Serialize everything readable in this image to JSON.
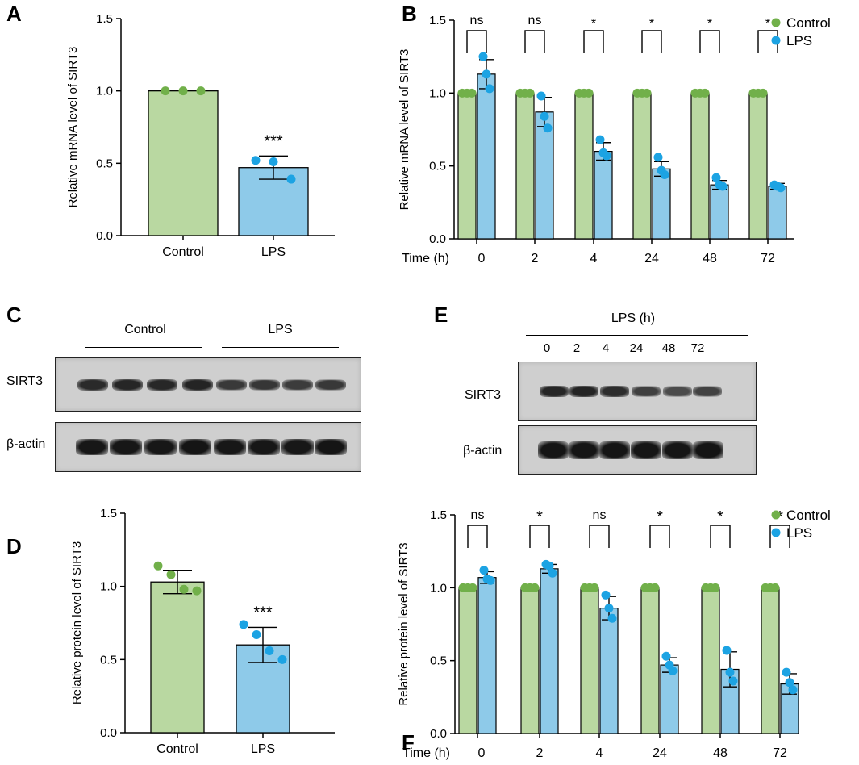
{
  "panels": [
    {
      "letter": "A"
    },
    {
      "letter": "B"
    },
    {
      "letter": "C"
    },
    {
      "letter": "D"
    },
    {
      "letter": "E"
    },
    {
      "letter": "F"
    }
  ],
  "chart_data": [
    {
      "id": "A",
      "type": "bar",
      "categories": [
        "Control",
        "LPS"
      ],
      "values": [
        1.0,
        0.47
      ],
      "errors": [
        0,
        0.08
      ],
      "points": [
        [
          1.0,
          1.0,
          1.0
        ],
        [
          0.52,
          0.51,
          0.39
        ]
      ],
      "significance": [
        "",
        "***"
      ],
      "ylabel": "Relative mRNA level of SIRT3",
      "ylim": [
        0,
        1.5
      ],
      "yticks": [
        "0.0",
        "0.5",
        "1.0",
        "1.5"
      ],
      "colors": {
        "control": "#b9d8a1",
        "lps": "#8ecae9"
      }
    },
    {
      "id": "B",
      "type": "bar",
      "xlabel": "Time (h)",
      "categories": [
        "0",
        "2",
        "4",
        "24",
        "48",
        "72"
      ],
      "series": [
        {
          "name": "Control",
          "values": [
            1,
            1,
            1,
            1,
            1,
            1
          ],
          "errors": [
            0,
            0,
            0,
            0,
            0,
            0
          ]
        },
        {
          "name": "LPS",
          "values": [
            1.13,
            0.87,
            0.6,
            0.48,
            0.37,
            0.36
          ],
          "errors": [
            0.1,
            0.1,
            0.06,
            0.05,
            0.03,
            0.02
          ],
          "points": [
            [
              1.25,
              1.13,
              1.03
            ],
            [
              0.98,
              0.84,
              0.76
            ],
            [
              0.68,
              0.59,
              0.57
            ],
            [
              0.56,
              0.47,
              0.44
            ],
            [
              0.42,
              0.37,
              0.36
            ],
            [
              0.37,
              0.36,
              0.35
            ]
          ]
        }
      ],
      "significance": [
        "ns",
        "ns",
        "*",
        "*",
        "*",
        "*"
      ],
      "ylabel": "Relative mRNA level of SIRT3",
      "ylim": [
        0,
        1.5
      ],
      "yticks": [
        "0.0",
        "0.5",
        "1.0",
        "1.5"
      ],
      "legend": [
        "Control",
        "LPS"
      ]
    },
    {
      "id": "D",
      "type": "bar",
      "categories": [
        "Control",
        "LPS"
      ],
      "values": [
        1.03,
        0.6
      ],
      "errors": [
        0.08,
        0.12
      ],
      "points": [
        [
          1.14,
          1.08,
          0.98,
          0.97
        ],
        [
          0.74,
          0.67,
          0.56,
          0.5
        ]
      ],
      "significance": [
        "",
        "***"
      ],
      "ylabel": "Relative protein level of SIRT3",
      "ylim": [
        0,
        1.5
      ],
      "yticks": [
        "0.0",
        "0.5",
        "1.0",
        "1.5"
      ]
    },
    {
      "id": "F",
      "type": "bar",
      "xlabel": "Time (h)",
      "categories": [
        "0",
        "2",
        "4",
        "24",
        "48",
        "72"
      ],
      "series": [
        {
          "name": "Control",
          "values": [
            1,
            1,
            1,
            1,
            1,
            1
          ],
          "errors": [
            0,
            0,
            0,
            0,
            0,
            0
          ]
        },
        {
          "name": "LPS",
          "values": [
            1.07,
            1.13,
            0.86,
            0.47,
            0.44,
            0.34
          ],
          "errors": [
            0.04,
            0.03,
            0.08,
            0.05,
            0.12,
            0.07
          ],
          "points": [
            [
              1.12,
              1.06,
              1.05
            ],
            [
              1.16,
              1.15,
              1.1
            ],
            [
              0.95,
              0.86,
              0.79
            ],
            [
              0.53,
              0.47,
              0.43
            ],
            [
              0.57,
              0.42,
              0.36
            ],
            [
              0.42,
              0.35,
              0.3
            ]
          ]
        }
      ],
      "significance": [
        "ns",
        "*",
        "ns",
        "*",
        "*",
        "*"
      ],
      "ylabel": "Relative protein level of SIRT3",
      "ylim": [
        0,
        1.5
      ],
      "yticks": [
        "0.0",
        "0.5",
        "1.0",
        "1.5"
      ],
      "legend": [
        "Control",
        "LPS"
      ]
    }
  ],
  "blots": {
    "C": {
      "group_labels": [
        "Control",
        "LPS"
      ],
      "rows": [
        {
          "label": "SIRT3",
          "intensities": [
            0.82,
            0.85,
            0.84,
            0.86,
            0.72,
            0.74,
            0.7,
            0.73
          ]
        },
        {
          "label": "β-actin",
          "intensities": [
            0.95,
            0.95,
            0.95,
            0.96,
            0.95,
            0.95,
            0.95,
            0.96
          ]
        }
      ]
    },
    "E": {
      "header": "LPS (h)",
      "lanes": [
        "0",
        "2",
        "4",
        "24",
        "48",
        "72"
      ],
      "rows": [
        {
          "label": "SIRT3",
          "intensities": [
            0.85,
            0.86,
            0.8,
            0.68,
            0.6,
            0.66
          ]
        },
        {
          "label": "β-actin",
          "intensities": [
            0.96,
            0.96,
            0.96,
            0.96,
            0.96,
            0.97
          ]
        }
      ]
    }
  },
  "colors": {
    "control_bar": "#b9d8a1",
    "control_dot": "#71b04a",
    "lps_bar": "#8ecae9",
    "lps_dot": "#1ca3e3"
  }
}
